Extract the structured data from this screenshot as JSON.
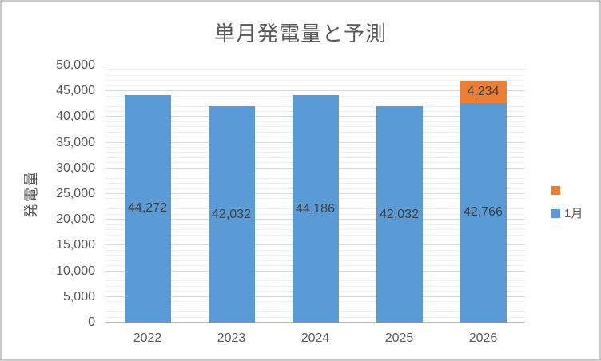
{
  "chart_data": {
    "type": "bar",
    "stacked": true,
    "title": "単月発電量と予測",
    "xlabel": "",
    "ylabel": "発電量",
    "categories": [
      "2022",
      "2023",
      "2024",
      "2025",
      "2026"
    ],
    "series": [
      {
        "name": "1月",
        "color": "#5B9BD5",
        "values": [
          44272,
          42032,
          44186,
          42032,
          42766
        ]
      },
      {
        "name": "",
        "color": "#ED7D31",
        "values": [
          null,
          null,
          null,
          null,
          4234
        ]
      }
    ],
    "data_labels": true,
    "data_label_position": "center",
    "ylim": [
      0,
      50000
    ],
    "y_major_step": 5000,
    "y_minor_step": 1000,
    "y_tick_labels": [
      "0",
      "5,000",
      "10,000",
      "15,000",
      "20,000",
      "25,000",
      "30,000",
      "35,000",
      "40,000",
      "45,000",
      "50,000"
    ],
    "grid": true,
    "legend_position": "right",
    "legend": [
      {
        "label": "",
        "color": "#ED7D31"
      },
      {
        "label": "1月",
        "color": "#5B9BD5"
      }
    ]
  },
  "colors": {
    "series_blue": "#5B9BD5",
    "series_orange": "#ED7D31",
    "title_text": "#595959",
    "axis_text": "#595959",
    "data_label_text": "#404040",
    "major_gridline": "#D9D9D9",
    "minor_gridline": "#EFEFEF",
    "axis_line": "#BFBFBF",
    "frame_border": "#C9C9C9"
  }
}
